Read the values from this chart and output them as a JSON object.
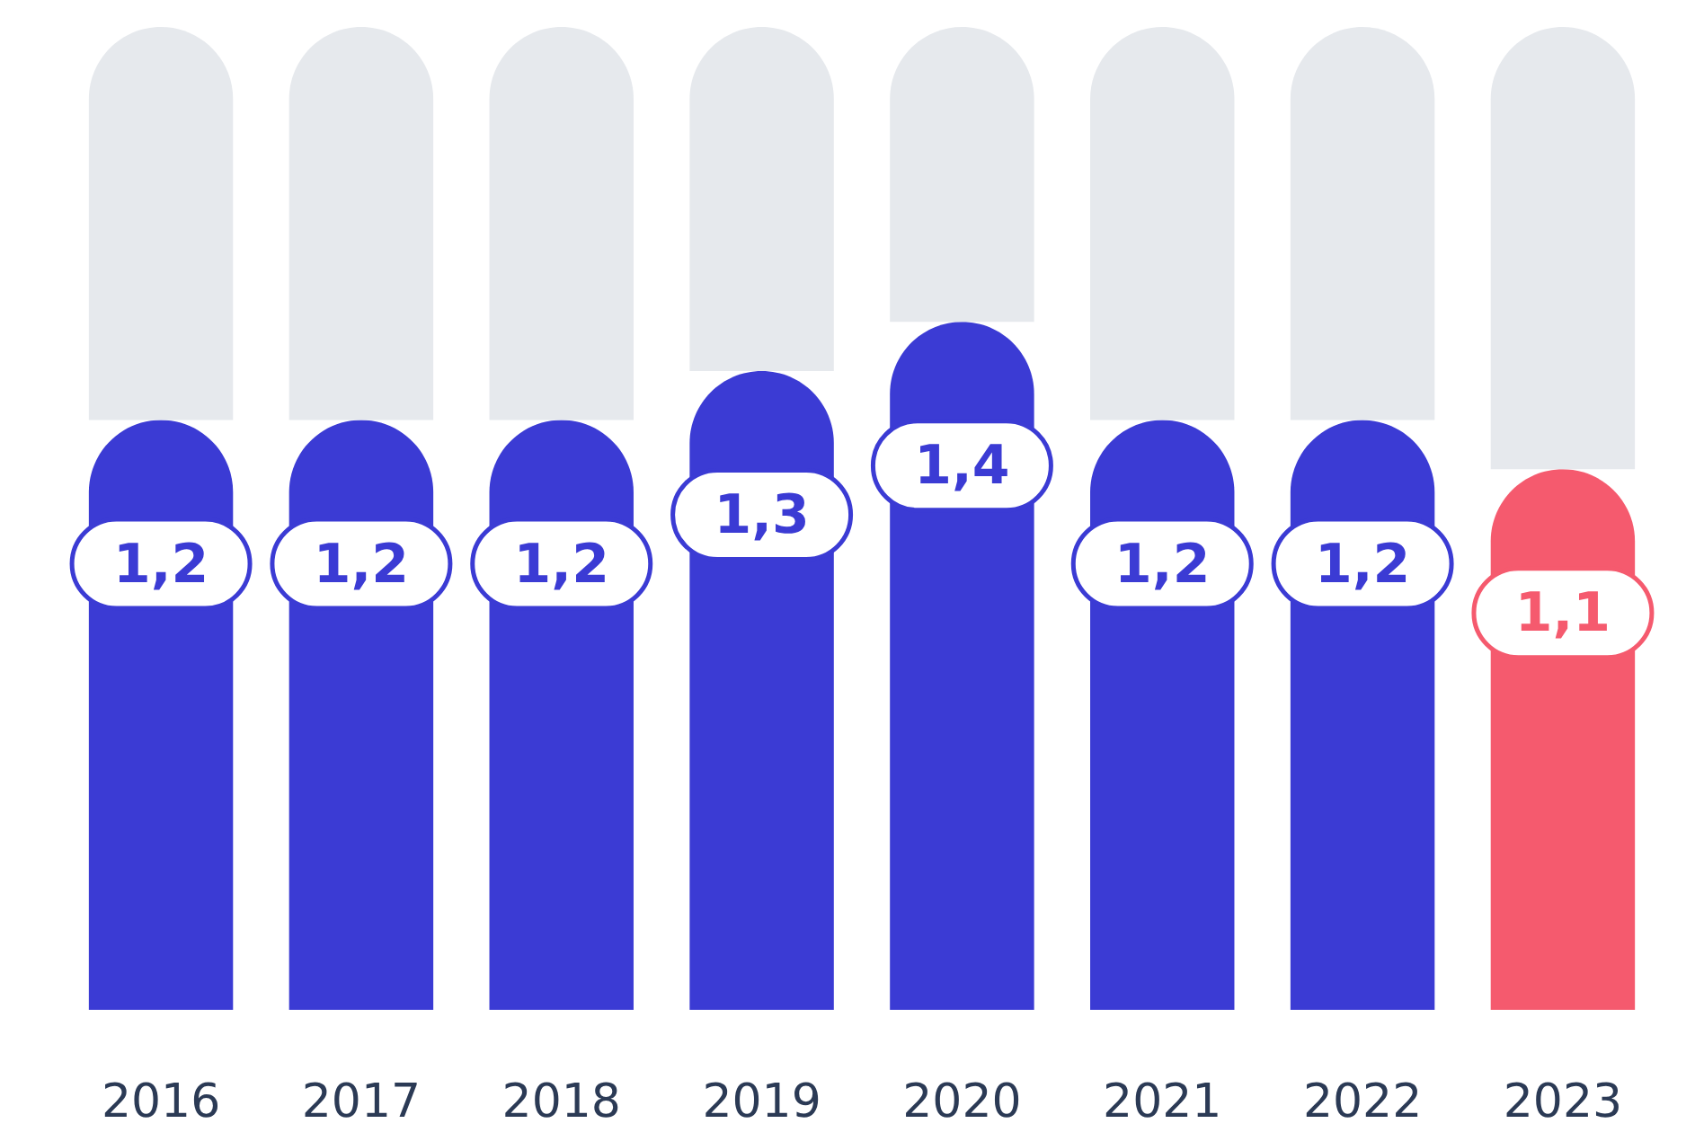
{
  "chart_data": {
    "type": "bar",
    "stacked": true,
    "categories": [
      "2016",
      "2017",
      "2018",
      "2019",
      "2020",
      "2021",
      "2022",
      "2023"
    ],
    "ylim": [
      0,
      2
    ],
    "series": [
      {
        "colors": [
          "#3b3bd4",
          "#3b3bd4",
          "#3b3bd4",
          "#3b3bd4",
          "#3b3bd4",
          "#3b3bd4",
          "#3b3bd4",
          "#f55a6e"
        ],
        "values": [
          1.2,
          1.2,
          1.2,
          1.3,
          1.4,
          1.2,
          1.2,
          1.1
        ],
        "value_labels": [
          "1,2",
          "1,2",
          "1,2",
          "1,3",
          "1,4",
          "1,2",
          "1,2",
          "1,1"
        ]
      },
      {
        "color": "#e6e9ed",
        "values": [
          0.8,
          0.8,
          0.8,
          0.7,
          0.6,
          0.8,
          0.8,
          0.9
        ]
      }
    ],
    "tick_labels": "x"
  }
}
